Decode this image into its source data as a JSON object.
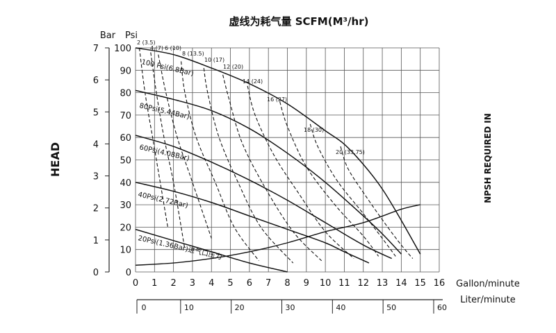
{
  "title": "虚线为耗气量 SCFM(M³/hr)",
  "head_label": "HEAD",
  "npsh_label": "NPSH REQUIRED IN",
  "bar_label": "Bar",
  "psi_label": "Psi",
  "gpm_label": "Gallon/minute",
  "lpm_label": "Liter/minute",
  "bar_ticks": [
    "7",
    "6",
    "5",
    "4",
    "3",
    "2",
    "1",
    "0"
  ],
  "psi_ticks": [
    "100",
    "90",
    "80",
    "70",
    "60",
    "50",
    "40",
    "30",
    "20",
    "10",
    "0"
  ],
  "gpm_ticks": [
    "0",
    "1",
    "2",
    "3",
    "4",
    "5",
    "6",
    "7",
    "8",
    "9",
    "10",
    "11",
    "12",
    "13",
    "14",
    "15",
    "16"
  ],
  "lpm_ticks": [
    "0",
    "10",
    "20",
    "30",
    "40",
    "50",
    "60"
  ],
  "chart_data": {
    "type": "line",
    "title": "虚线为耗气量 SCFM(M³/hr)",
    "xlabel": "Gallon/minute",
    "x2label": "Liter/minute",
    "ylabel": "HEAD",
    "y2label": "NPSH REQUIRED IN",
    "xlim": [
      0,
      16
    ],
    "x2lim": [
      0,
      60
    ],
    "ylim": [
      0,
      100
    ],
    "y_secondary_bar": [
      0,
      7
    ],
    "grid": true,
    "pressure_curves": [
      {
        "name": "100 Psi(6.8Bar)",
        "x": [
          0,
          2,
          4,
          6,
          8,
          10,
          11,
          12,
          13,
          14,
          15
        ],
        "y": [
          100,
          97,
          91,
          84,
          75,
          63,
          57,
          48,
          37,
          23,
          8
        ]
      },
      {
        "name": "80Psi(5.44Bar)",
        "x": [
          0,
          2,
          4,
          6,
          8,
          10,
          12,
          13,
          14
        ],
        "y": [
          81,
          77,
          72,
          64,
          53,
          40,
          25,
          17,
          8
        ]
      },
      {
        "name": "60Psi(4.08Bar)",
        "x": [
          0,
          2,
          4,
          6,
          8,
          10,
          12,
          13.5
        ],
        "y": [
          61,
          56,
          49,
          41,
          32,
          22,
          12,
          6
        ]
      },
      {
        "name": "40Psi(2.72Bar)",
        "x": [
          0,
          2,
          4,
          6,
          8,
          10,
          11,
          12.3
        ],
        "y": [
          40,
          36,
          31,
          25,
          19,
          13,
          9,
          4
        ]
      },
      {
        "name": "20Psi(1.36Bar)",
        "x": [
          0,
          2,
          4,
          6,
          8
        ],
        "y": [
          19,
          14,
          9,
          4,
          0
        ]
      }
    ],
    "npsh_curve": {
      "name": "进气口压力",
      "x": [
        0,
        2,
        4,
        6,
        8,
        10,
        12,
        14,
        15
      ],
      "y": [
        3,
        4,
        6,
        9,
        13,
        18,
        22,
        28,
        30
      ]
    },
    "air_consumption": [
      {
        "name": "2 (3.5)",
        "x": [
          0.2,
          0.5,
          0.9,
          1.3,
          1.7
        ],
        "y": [
          100,
          80,
          60,
          40,
          20
        ]
      },
      {
        "name": "4 (7)",
        "x": [
          0.8,
          1.1,
          1.5,
          2.0,
          2.6
        ],
        "y": [
          98,
          80,
          60,
          40,
          10
        ]
      },
      {
        "name": "6 (10)",
        "x": [
          1.2,
          1.6,
          2.2,
          3.0,
          4.0
        ],
        "y": [
          97,
          80,
          60,
          40,
          15
        ]
      },
      {
        "name": "8 (13.5)",
        "x": [
          2.4,
          2.6,
          3.2,
          4.2,
          5.2,
          6.5
        ],
        "y": [
          94,
          80,
          60,
          40,
          20,
          5
        ]
      },
      {
        "name": "10 (17)",
        "x": [
          3.6,
          3.8,
          4.4,
          5.4,
          6.6,
          8.3
        ],
        "y": [
          91,
          80,
          60,
          40,
          20,
          4
        ]
      },
      {
        "name": "12 (20)",
        "x": [
          4.6,
          4.9,
          5.6,
          6.8,
          8.3,
          9.8
        ],
        "y": [
          88,
          78,
          58,
          38,
          18,
          5
        ]
      },
      {
        "name": "14 (24)",
        "x": [
          5.9,
          6.3,
          7.3,
          8.6,
          10.0,
          11.5
        ],
        "y": [
          83,
          70,
          52,
          35,
          18,
          6
        ]
      },
      {
        "name": "16 (27)",
        "x": [
          7.6,
          8.0,
          9.0,
          10.5,
          12.0,
          12.8
        ],
        "y": [
          76,
          65,
          47,
          30,
          16,
          7
        ]
      },
      {
        "name": "18 (30)",
        "x": [
          9.2,
          9.6,
          10.6,
          12.0,
          13.0,
          13.7
        ],
        "y": [
          66,
          56,
          41,
          26,
          15,
          7
        ]
      },
      {
        "name": "20 (33.75)",
        "x": [
          10.8,
          11.2,
          12.2,
          13.2,
          14.0,
          14.6
        ],
        "y": [
          56,
          46,
          33,
          21,
          12,
          6
        ]
      }
    ],
    "curve_labels": {
      "p100": "100 Psi(6.8Bar)",
      "p80": "80Psi(5.44Bar)",
      "p60": "60Psi(4.08Bar)",
      "p40": "40Psi(2.72Bar)",
      "p20": "20Psi(1.36Bar)进气口压力",
      "a2": "2 (3.5)",
      "a4": "4 (7)",
      "a6": "6 (10)",
      "a8": "8 (13.5)",
      "a10": "10 (17)",
      "a12": "12 (20)",
      "a14": "14 (24)",
      "a16": "16 (27)",
      "a18": "18 (30)",
      "a20": "20 (33.75)"
    }
  }
}
